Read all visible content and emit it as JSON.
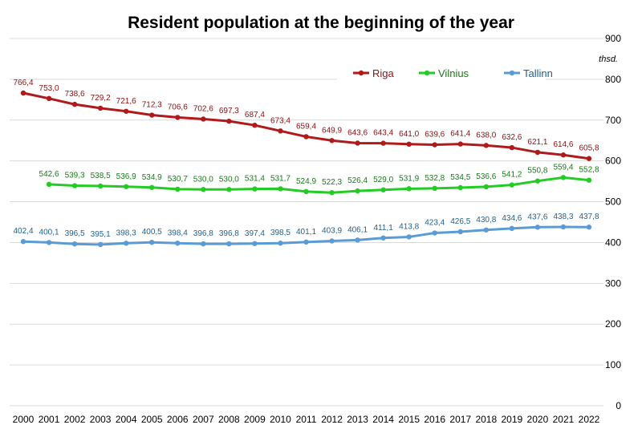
{
  "chart_data": {
    "type": "line",
    "title": "Resident population at the beginning of the year",
    "unit_label": "thsd.",
    "y_axis_side": "right",
    "ylim": [
      0,
      900
    ],
    "yticks": [
      0,
      100,
      200,
      300,
      400,
      500,
      600,
      700,
      800,
      900
    ],
    "grid": true,
    "legend_position": "top-right",
    "categories": [
      "2000",
      "2001",
      "2002",
      "2003",
      "2004",
      "2005",
      "2006",
      "2007",
      "2008",
      "2009",
      "2010",
      "2011",
      "2012",
      "2013",
      "2014",
      "2015",
      "2016",
      "2017",
      "2018",
      "2019",
      "2020",
      "2021",
      "2022"
    ],
    "series": [
      {
        "name": "Riga",
        "color": "#b01a1a",
        "label_color": "#8b1010",
        "values": [
          766.4,
          753.0,
          738.6,
          729.2,
          721.6,
          712.3,
          706.6,
          702.6,
          697.3,
          687.4,
          673.4,
          659.4,
          649.9,
          643.6,
          643.4,
          641.0,
          639.6,
          641.4,
          638.0,
          632.6,
          621.1,
          614.6,
          605.8
        ],
        "labels": [
          "766,4",
          "753,0",
          "738,6",
          "729,2",
          "721,6",
          "712,3",
          "706,6",
          "702,6",
          "697,3",
          "687,4",
          "673,4",
          "659,4",
          "649,9",
          "643,6",
          "643,4",
          "641,0",
          "639,6",
          "641,4",
          "638,0",
          "632,6",
          "621,1",
          "614,6",
          "605,8"
        ]
      },
      {
        "name": "Vilnius",
        "color": "#22cc22",
        "label_color": "#1a7a1a",
        "values": [
          null,
          542.6,
          539.3,
          538.5,
          536.9,
          534.9,
          530.7,
          530.0,
          530.0,
          531.4,
          531.7,
          524.9,
          522.3,
          526.4,
          529.0,
          531.9,
          532.8,
          534.5,
          536.6,
          541.2,
          550.8,
          559.4,
          552.8
        ],
        "labels": [
          null,
          "542,6",
          "539,3",
          "538,5",
          "536,9",
          "534,9",
          "530,7",
          "530,0",
          "530,0",
          "531,4",
          "531,7",
          "524,9",
          "522,3",
          "526,4",
          "529,0",
          "531,9",
          "532,8",
          "534,5",
          "536,6",
          "541,2",
          "550,8",
          "559,4",
          "552,8"
        ]
      },
      {
        "name": "Tallinn",
        "color": "#5b9bd5",
        "label_color": "#1f5f8f",
        "values": [
          402.4,
          400.1,
          396.5,
          395.1,
          398.3,
          400.5,
          398.4,
          396.8,
          396.8,
          397.4,
          398.5,
          401.1,
          403.9,
          406.1,
          411.1,
          413.8,
          423.4,
          426.5,
          430.8,
          434.6,
          437.6,
          438.3,
          437.8
        ],
        "labels": [
          "402,4",
          "400,1",
          "396,5",
          "395,1",
          "398,3",
          "400,5",
          "398,4",
          "396,8",
          "396,8",
          "397,4",
          "398,5",
          "401,1",
          "403,9",
          "406,1",
          "411,1",
          "413,8",
          "423,4",
          "426,5",
          "430,8",
          "434,6",
          "437,6",
          "438,3",
          "437,8"
        ]
      }
    ]
  }
}
